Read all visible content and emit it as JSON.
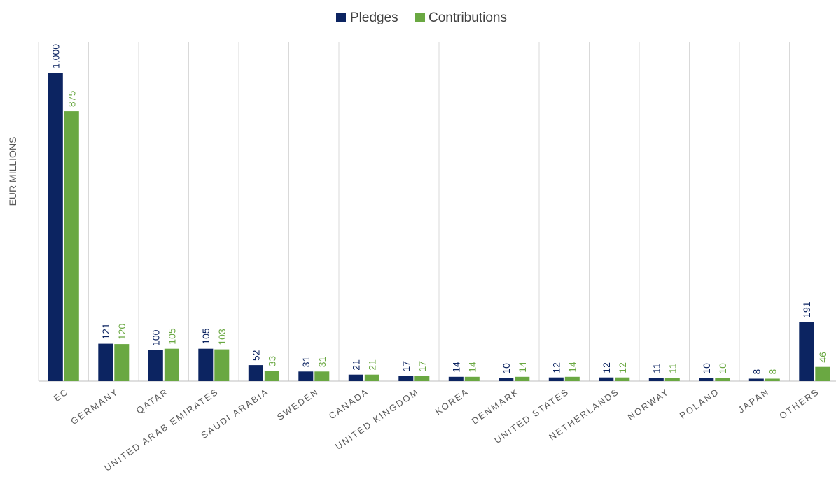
{
  "chart_data": {
    "type": "bar",
    "categories": [
      "EC",
      "GERMANY",
      "QATAR",
      "UNITED ARAB EMIRATES",
      "SAUDI ARABIA",
      "SWEDEN",
      "CANADA",
      "UNITED KINGDOM",
      "KOREA",
      "DENMARK",
      "UNITED STATES",
      "NETHERLANDS",
      "NORWAY",
      "POLAND",
      "JAPAN",
      "OTHERS"
    ],
    "series": [
      {
        "name": "Pledges",
        "color": "#0c2461",
        "values": [
          1000,
          121,
          100,
          105,
          52,
          31,
          21,
          17,
          14,
          10,
          12,
          12,
          11,
          10,
          8,
          191
        ],
        "labels": [
          "1,000",
          "121",
          "100",
          "105",
          "52",
          "31",
          "21",
          "17",
          "14",
          "10",
          "12",
          "12",
          "11",
          "10",
          "8",
          "191"
        ]
      },
      {
        "name": "Contributions",
        "color": "#6aa842",
        "values": [
          875,
          120,
          105,
          103,
          33,
          31,
          21,
          17,
          14,
          14,
          14,
          12,
          11,
          10,
          8,
          46
        ],
        "labels": [
          "875",
          "120",
          "105",
          "103",
          "33",
          "31",
          "21",
          "17",
          "14",
          "14",
          "14",
          "12",
          "11",
          "10",
          "8",
          "46"
        ]
      }
    ],
    "title": "",
    "xlabel": "",
    "ylabel": "EUR MILLIONS",
    "ylim": [
      0,
      1000
    ],
    "grid": "vertical separators between categories",
    "legend": "top-center"
  }
}
